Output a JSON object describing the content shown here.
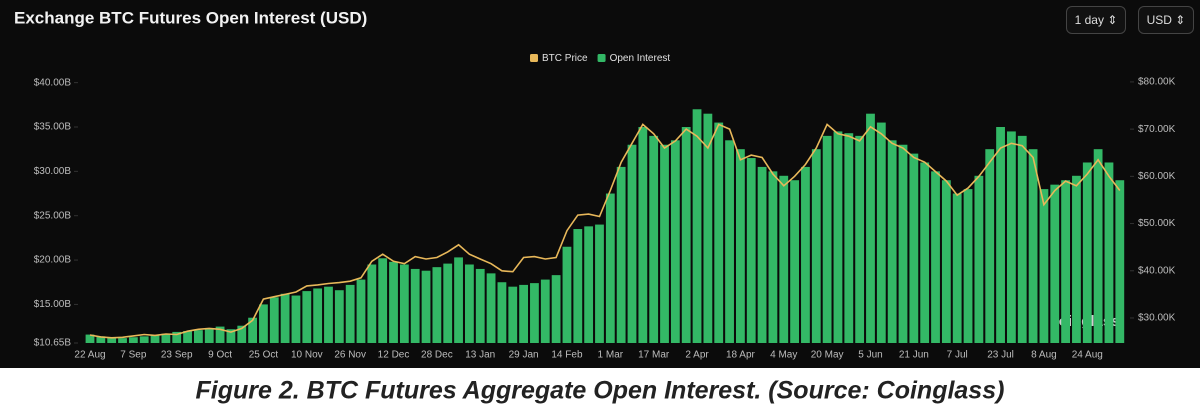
{
  "header": {
    "title": "Exchange BTC Futures Open Interest (USD)",
    "controls": [
      "1 day",
      "USD"
    ]
  },
  "watermark": "coinglass",
  "caption": "Figure 2.  BTC Futures Aggregate Open Interest. (Source: Coinglass)",
  "chart_data": {
    "type": "bar",
    "categories": [
      "22 Aug",
      null,
      null,
      null,
      "7 Sep",
      null,
      null,
      null,
      "23 Sep",
      null,
      null,
      null,
      "9 Oct",
      null,
      null,
      null,
      "25 Oct",
      null,
      null,
      null,
      "10 Nov",
      null,
      null,
      null,
      "26 Nov",
      null,
      null,
      null,
      "12 Dec",
      null,
      null,
      null,
      "28 Dec",
      null,
      null,
      null,
      "13 Jan",
      null,
      null,
      null,
      "29 Jan",
      null,
      null,
      null,
      "14 Feb",
      null,
      null,
      null,
      "1 Mar",
      null,
      null,
      null,
      "17 Mar",
      null,
      null,
      null,
      "2 Apr",
      null,
      null,
      null,
      "18 Apr",
      null,
      null,
      null,
      "4 May",
      null,
      null,
      null,
      "20 May",
      null,
      null,
      null,
      "5 Jun",
      null,
      null,
      null,
      "21 Jun",
      null,
      null,
      null,
      "7 Jul",
      null,
      null,
      null,
      "23 Jul",
      null,
      null,
      null,
      "8 Aug",
      null,
      null,
      null,
      "24 Aug",
      null,
      null,
      null
    ],
    "series": [
      {
        "name": "BTC Price",
        "type": "line",
        "axis": "y2",
        "color": "#e8b85a",
        "values": [
          26.4,
          26.0,
          25.8,
          25.9,
          26.2,
          26.5,
          26.3,
          26.6,
          26.5,
          27.2,
          27.6,
          27.8,
          27.6,
          27.0,
          27.8,
          29.5,
          34.0,
          34.5,
          35.0,
          35.5,
          36.8,
          37.0,
          37.3,
          37.5,
          37.8,
          38.5,
          42.0,
          43.5,
          42.0,
          41.5,
          43.0,
          42.5,
          42.8,
          44.0,
          45.5,
          43.5,
          42.5,
          41.5,
          40.0,
          39.8,
          42.8,
          43.0,
          42.5,
          42.8,
          48.5,
          51.8,
          52.0,
          51.5,
          57.0,
          63.0,
          67.0,
          71.0,
          69.0,
          66.0,
          67.5,
          70.0,
          68.5,
          66.0,
          71.0,
          70.0,
          63.5,
          64.5,
          64.0,
          60.5,
          58.0,
          60.0,
          62.5,
          66.0,
          71.0,
          69.0,
          68.5,
          67.5,
          70.5,
          69.0,
          67.0,
          66.0,
          64.0,
          63.0,
          61.0,
          59.0,
          56.0,
          57.5,
          60.0,
          63.0,
          66.0,
          67.0,
          66.5,
          64.0,
          54.0,
          57.0,
          59.0,
          58.0,
          60.5,
          63.5,
          60.0,
          57.0
        ]
      },
      {
        "name": "Open Interest",
        "type": "bar",
        "color": "#33b866",
        "values": [
          11.6,
          11.4,
          11.3,
          11.2,
          11.3,
          11.4,
          11.5,
          11.7,
          11.9,
          12.0,
          12.1,
          12.3,
          12.5,
          12.2,
          12.6,
          13.5,
          15.0,
          15.8,
          16.2,
          16.0,
          16.5,
          16.8,
          17.0,
          16.6,
          17.2,
          17.8,
          19.5,
          20.2,
          19.8,
          19.5,
          19.0,
          18.8,
          19.2,
          19.6,
          20.3,
          19.5,
          19.0,
          18.5,
          17.5,
          17.0,
          17.2,
          17.4,
          17.8,
          18.3,
          21.5,
          23.5,
          23.8,
          24.0,
          27.5,
          30.5,
          33.0,
          35.0,
          34.0,
          33.0,
          33.5,
          35.0,
          37.0,
          36.5,
          35.5,
          33.5,
          32.5,
          31.5,
          30.5,
          30.0,
          29.5,
          29.0,
          30.5,
          32.5,
          34.0,
          34.5,
          34.3,
          34.0,
          36.5,
          35.5,
          33.5,
          33.0,
          32.0,
          31.0,
          30.0,
          29.0,
          27.5,
          28.0,
          29.5,
          32.5,
          35.0,
          34.5,
          34.0,
          32.5,
          28.0,
          28.5,
          29.0,
          29.5,
          31.0,
          32.5,
          31.0,
          29.0
        ]
      }
    ],
    "ylim": [
      10.65,
      41.2
    ],
    "yticks": [
      {
        "value": 10.65,
        "label": "$10.65B"
      },
      {
        "value": 15,
        "label": "$15.00B"
      },
      {
        "value": 20,
        "label": "$20.00B"
      },
      {
        "value": 25,
        "label": "$25.00B"
      },
      {
        "value": 30,
        "label": "$30.00B"
      },
      {
        "value": 35,
        "label": "$35.00B"
      },
      {
        "value": 40,
        "label": "$40.00B"
      }
    ],
    "y2lim": [
      24.7,
      82.1
    ],
    "y2ticks": [
      {
        "value": 30,
        "label": "$30.00K"
      },
      {
        "value": 40,
        "label": "$40.00K"
      },
      {
        "value": 50,
        "label": "$50.00K"
      },
      {
        "value": 60,
        "label": "$60.00K"
      },
      {
        "value": 70,
        "label": "$70.00K"
      },
      {
        "value": 80,
        "label": "$80.00K"
      }
    ],
    "legend": "top"
  }
}
